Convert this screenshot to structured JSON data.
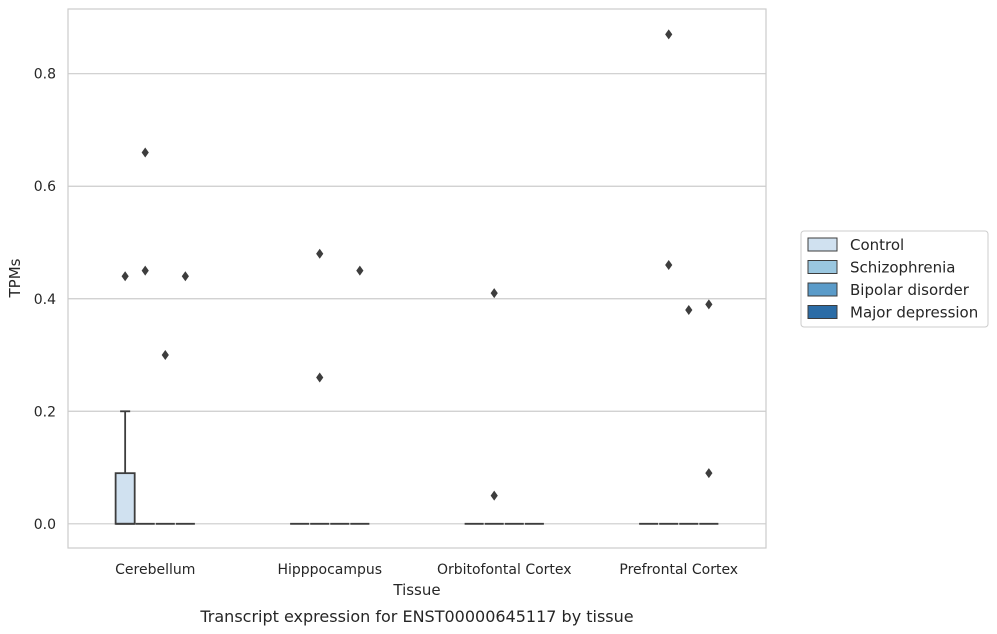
{
  "chart_data": {
    "type": "boxplot",
    "caption": "Transcript expression for ENST00000645117 by tissue",
    "xlabel": "Tissue",
    "ylabel": "TPMs",
    "ylim": [
      -0.043,
      0.915
    ],
    "yticks": [
      0.0,
      0.2,
      0.4,
      0.6,
      0.8
    ],
    "ytick_labels": [
      "0.0",
      "0.2",
      "0.4",
      "0.6",
      "0.8"
    ],
    "grid": "y",
    "legend_position": "center-right",
    "categories": [
      "Cerebellum",
      "Hipppocampus",
      "Orbitofontal Cortex",
      "Prefrontal Cortex"
    ],
    "series": [
      {
        "name": "Control",
        "color": "#d0e1f0",
        "boxes": [
          {
            "q1": 0.0,
            "median": 0.0,
            "q3": 0.09,
            "whisker_low": 0.0,
            "whisker_high": 0.2,
            "outliers": [
              0.44
            ]
          },
          {
            "q1": 0.0,
            "median": 0.0,
            "q3": 0.0,
            "whisker_low": 0.0,
            "whisker_high": 0.0,
            "outliers": []
          },
          {
            "q1": 0.0,
            "median": 0.0,
            "q3": 0.0,
            "whisker_low": 0.0,
            "whisker_high": 0.0,
            "outliers": []
          },
          {
            "q1": 0.0,
            "median": 0.0,
            "q3": 0.0,
            "whisker_low": 0.0,
            "whisker_high": 0.0,
            "outliers": []
          }
        ]
      },
      {
        "name": "Schizophrenia",
        "color": "#9ac7e0",
        "boxes": [
          {
            "q1": 0.0,
            "median": 0.0,
            "q3": 0.0,
            "whisker_low": 0.0,
            "whisker_high": 0.0,
            "outliers": [
              0.66,
              0.45
            ]
          },
          {
            "q1": 0.0,
            "median": 0.0,
            "q3": 0.0,
            "whisker_low": 0.0,
            "whisker_high": 0.0,
            "outliers": [
              0.48,
              0.26
            ]
          },
          {
            "q1": 0.0,
            "median": 0.0,
            "q3": 0.0,
            "whisker_low": 0.0,
            "whisker_high": 0.0,
            "outliers": [
              0.41,
              0.05
            ]
          },
          {
            "q1": 0.0,
            "median": 0.0,
            "q3": 0.0,
            "whisker_low": 0.0,
            "whisker_high": 0.0,
            "outliers": [
              0.87,
              0.46
            ]
          }
        ]
      },
      {
        "name": "Bipolar disorder",
        "color": "#5a9bc9",
        "boxes": [
          {
            "q1": 0.0,
            "median": 0.0,
            "q3": 0.0,
            "whisker_low": 0.0,
            "whisker_high": 0.0,
            "outliers": [
              0.3
            ]
          },
          {
            "q1": 0.0,
            "median": 0.0,
            "q3": 0.0,
            "whisker_low": 0.0,
            "whisker_high": 0.0,
            "outliers": []
          },
          {
            "q1": 0.0,
            "median": 0.0,
            "q3": 0.0,
            "whisker_low": 0.0,
            "whisker_high": 0.0,
            "outliers": []
          },
          {
            "q1": 0.0,
            "median": 0.0,
            "q3": 0.0,
            "whisker_low": 0.0,
            "whisker_high": 0.0,
            "outliers": [
              0.38
            ]
          }
        ]
      },
      {
        "name": "Major depression",
        "color": "#2b6ca6",
        "boxes": [
          {
            "q1": 0.0,
            "median": 0.0,
            "q3": 0.0,
            "whisker_low": 0.0,
            "whisker_high": 0.0,
            "outliers": [
              0.44
            ]
          },
          {
            "q1": 0.0,
            "median": 0.0,
            "q3": 0.0,
            "whisker_low": 0.0,
            "whisker_high": 0.0,
            "outliers": [
              0.45
            ]
          },
          {
            "q1": 0.0,
            "median": 0.0,
            "q3": 0.0,
            "whisker_low": 0.0,
            "whisker_high": 0.0,
            "outliers": []
          },
          {
            "q1": 0.0,
            "median": 0.0,
            "q3": 0.0,
            "whisker_low": 0.0,
            "whisker_high": 0.0,
            "outliers": [
              0.39,
              0.09
            ]
          }
        ]
      }
    ]
  }
}
